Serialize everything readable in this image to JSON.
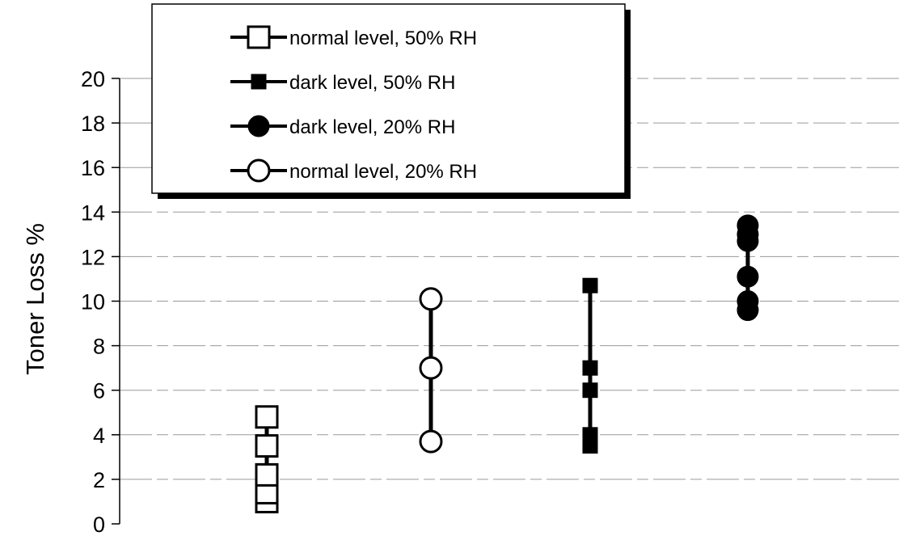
{
  "chart_data": {
    "type": "scatter",
    "title": "",
    "xlabel": "",
    "ylabel": "Toner Loss %",
    "ylim": [
      0,
      20
    ],
    "yticks": [
      "0",
      "2",
      "4",
      "6",
      "8",
      "10",
      "12",
      "14",
      "16",
      "18",
      "20"
    ],
    "grid": true,
    "legend_position": "top-left",
    "series": [
      {
        "name": "normal level, 50% RH",
        "marker": "square-open",
        "x": 1,
        "values": [
          1.0,
          1.4,
          2.2,
          3.5,
          4.8
        ]
      },
      {
        "name": "normal level, 20% RH",
        "marker": "circle-open",
        "x": 2,
        "values": [
          3.7,
          7.0,
          10.1
        ]
      },
      {
        "name": "dark level, 50% RH",
        "marker": "square-filled",
        "x": 3,
        "values": [
          3.5,
          4.0,
          6.0,
          7.0,
          10.7
        ]
      },
      {
        "name": "dark level, 20% RH",
        "marker": "circle-filled",
        "x": 4,
        "values": [
          9.6,
          10.0,
          11.1,
          12.7,
          13.0,
          13.4
        ]
      }
    ],
    "legend_order": [
      "normal level, 50% RH",
      "dark level, 50% RH",
      "dark level, 20% RH",
      "normal level, 20% RH"
    ]
  }
}
